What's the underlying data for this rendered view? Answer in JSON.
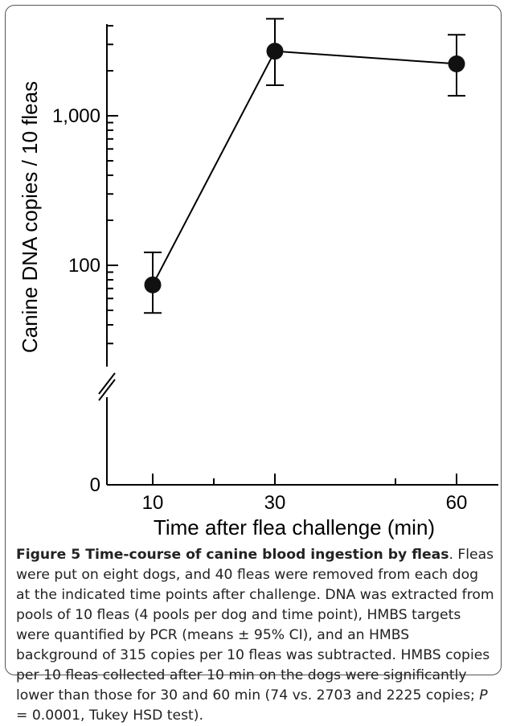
{
  "chart_data": {
    "type": "line",
    "xlabel": "Time after flea challenge (min)",
    "ylabel": "Canine DNA copies / 10 fleas",
    "x_ticks": [
      "10",
      "30",
      "60"
    ],
    "y_ticks": [
      "0",
      "100",
      "1,000"
    ],
    "y_scale": "log",
    "y_axis_break": true,
    "ylim": [
      0,
      4500
    ],
    "grid": false,
    "series": [
      {
        "x": [
          10,
          30,
          60
        ],
        "values": [
          74,
          2703,
          2225
        ],
        "ci_low": [
          48,
          1600,
          1360
        ],
        "ci_high": [
          122,
          4450,
          3480
        ]
      }
    ]
  },
  "caption": {
    "label": "Figure 5 Time-course of canine blood ingestion by fleas",
    "text_1": ". Fleas were put on eight dogs, and 40 fleas were removed from each dog at the indicated time points after challenge. DNA was extracted from pools of 10 fleas (4 pools per dog and time point), HMBS targets were quantified by PCR (means ± 95% CI), and an HMBS background of 315 copies per 10 fleas was subtracted. HMBS copies per 10 fleas collected after 10 min on the dogs were significantly lower than those for 30 and 60 min (74 vs. 2703 and 2225 copies; ",
    "p_symbol": "P",
    "text_2": " = 0.0001, Tukey HSD test)."
  }
}
